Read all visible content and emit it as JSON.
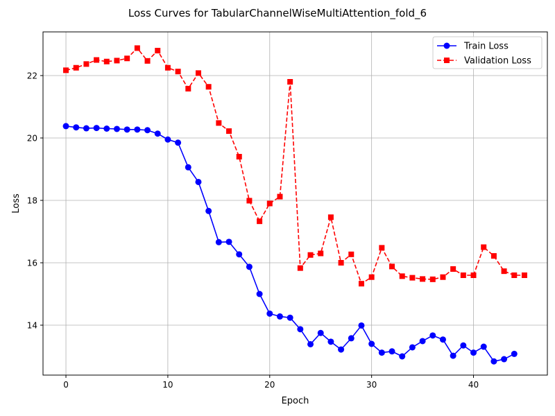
{
  "chart_data": {
    "type": "line",
    "title": "Loss Curves for TabularChannelWiseMultiAttention_fold_6",
    "xlabel": "Epoch",
    "ylabel": "Loss",
    "xlim": [
      -2.25,
      47.25
    ],
    "ylim": [
      12.4,
      23.4
    ],
    "xticks": [
      0,
      10,
      20,
      30,
      40
    ],
    "yticks": [
      14,
      16,
      18,
      20,
      22
    ],
    "grid": true,
    "legend_position": "top-right",
    "series": [
      {
        "name": "Train Loss",
        "color": "#0000ff",
        "line_style": "solid",
        "marker": "circle",
        "x": [
          0,
          1,
          2,
          3,
          4,
          5,
          6,
          7,
          8,
          9,
          10,
          11,
          12,
          13,
          14,
          15,
          16,
          17,
          18,
          19,
          20,
          21,
          22,
          23,
          24,
          25,
          26,
          27,
          28,
          29,
          30,
          31,
          32,
          33,
          34,
          35,
          36,
          37,
          38,
          39,
          40,
          41,
          42,
          43,
          44
        ],
        "y": [
          20.38,
          20.34,
          20.31,
          20.32,
          20.3,
          20.29,
          20.27,
          20.27,
          20.25,
          20.14,
          19.95,
          19.85,
          19.06,
          18.59,
          17.66,
          16.66,
          16.67,
          16.27,
          15.87,
          15.0,
          14.37,
          14.28,
          14.24,
          13.87,
          13.39,
          13.75,
          13.47,
          13.22,
          13.58,
          13.99,
          13.4,
          13.12,
          13.16,
          13.0,
          13.29,
          13.49,
          13.67,
          13.54,
          13.02,
          13.35,
          13.12,
          13.31,
          12.84,
          12.91,
          13.08
        ]
      },
      {
        "name": "Validation Loss",
        "color": "#ff0000",
        "line_style": "dashed",
        "marker": "square",
        "x": [
          0,
          1,
          2,
          3,
          4,
          5,
          6,
          7,
          8,
          9,
          10,
          11,
          12,
          13,
          14,
          15,
          16,
          17,
          18,
          19,
          20,
          21,
          22,
          23,
          24,
          25,
          26,
          27,
          28,
          29,
          30,
          31,
          32,
          33,
          34,
          35,
          36,
          37,
          38,
          39,
          40,
          41,
          42,
          43,
          44,
          45
        ],
        "y": [
          22.17,
          22.25,
          22.37,
          22.5,
          22.45,
          22.48,
          22.55,
          22.88,
          22.47,
          22.8,
          22.25,
          22.13,
          21.58,
          22.08,
          21.64,
          20.48,
          20.22,
          19.4,
          17.99,
          17.33,
          17.9,
          18.12,
          21.8,
          15.83,
          16.25,
          16.3,
          17.46,
          16.0,
          16.27,
          15.33,
          15.54,
          16.48,
          15.88,
          15.57,
          15.52,
          15.48,
          15.47,
          15.54,
          15.8,
          15.6,
          15.6,
          16.5,
          16.22,
          15.73,
          15.6,
          15.6
        ]
      }
    ]
  }
}
